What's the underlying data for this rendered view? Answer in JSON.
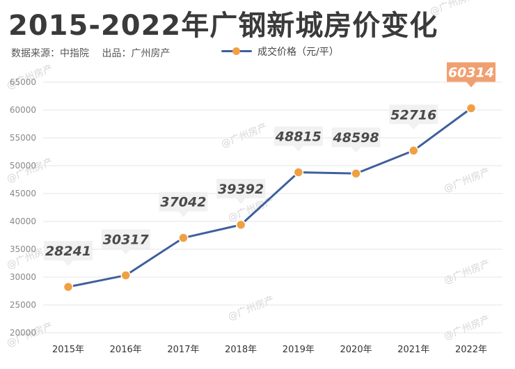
{
  "header": {
    "title": "2015-2022年广钢新城房价变化",
    "source": "数据来源：中指院",
    "producer": "出品：广州房产"
  },
  "watermark": "@广州房产",
  "colors": {
    "line": "#3f5f9c",
    "marker": "#f0a043",
    "highlight_label_bg": "#f0a070",
    "label_bg": "#f1f1f1",
    "grid": "#e6e6e6"
  },
  "chart_data": {
    "type": "line",
    "title": "2015-2022年广钢新城房价变化",
    "categories": [
      "2015年",
      "2016年",
      "2017年",
      "2018年",
      "2019年",
      "2020年",
      "2021年",
      "2022年"
    ],
    "series": [
      {
        "name": "成交价格（元/平）",
        "values": [
          28241,
          30317,
          37042,
          39392,
          48815,
          48598,
          52716,
          60314
        ]
      }
    ],
    "y_ticks": [
      20000,
      25000,
      30000,
      35000,
      40000,
      45000,
      50000,
      55000,
      60000,
      65000
    ],
    "ylim": [
      20000,
      65000
    ],
    "xlabel": "",
    "ylabel": "",
    "grid": true,
    "legend": "top",
    "data_labels": true,
    "highlight_last": true
  }
}
